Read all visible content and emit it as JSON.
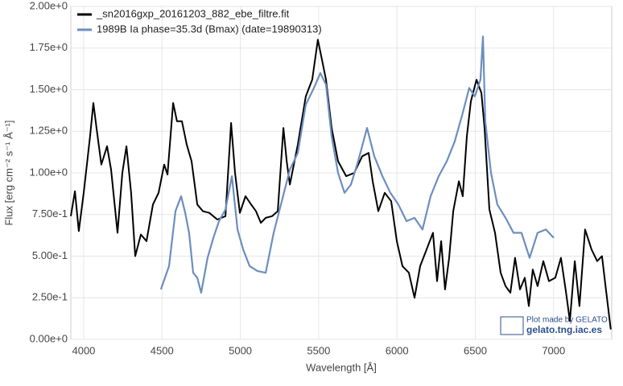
{
  "chart_data": {
    "type": "line",
    "xlabel": "Wavelength [Å]",
    "ylabel": "Flux [erg cm⁻² s⁻¹ Å⁻¹]",
    "xlim": [
      3918,
      7371
    ],
    "ylim": [
      0,
      2
    ],
    "xticks": [
      4000,
      4500,
      5000,
      5500,
      6000,
      6500,
      7000
    ],
    "yticks": [
      {
        "value": 0,
        "label": "0.00e+0"
      },
      {
        "value": 0.25,
        "label": "2.50e-1"
      },
      {
        "value": 0.5,
        "label": "5.00e-1"
      },
      {
        "value": 0.75,
        "label": "7.50e-1"
      },
      {
        "value": 1,
        "label": "1.00e+0"
      },
      {
        "value": 1.25,
        "label": "1.25e+0"
      },
      {
        "value": 1.5,
        "label": "1.50e+0"
      },
      {
        "value": 1.75,
        "label": "1.75e+0"
      },
      {
        "value": 2,
        "label": "2.00e+0"
      }
    ],
    "grid": true,
    "legend": "upper left",
    "annotations": [
      "Plot made by GELATO",
      "gelato.tng.iac.es"
    ],
    "series": [
      {
        "name": "_sn2016gxp_20161203_882_ebe_filtre.fit",
        "color": "#000000",
        "x": [
          3918,
          3944,
          3969,
          4000,
          4041,
          4062,
          4082,
          4113,
          4149,
          4175,
          4216,
          4247,
          4273,
          4303,
          4329,
          4365,
          4401,
          4442,
          4478,
          4514,
          4535,
          4571,
          4596,
          4627,
          4658,
          4689,
          4725,
          4761,
          4802,
          4853,
          4905,
          4941,
          4966,
          4997,
          5033,
          5069,
          5100,
          5131,
          5162,
          5203,
          5239,
          5275,
          5296,
          5316,
          5367,
          5418,
          5459,
          5495,
          5521,
          5547,
          5583,
          5624,
          5676,
          5727,
          5778,
          5819,
          5845,
          5881,
          5922,
          5963,
          5999,
          6035,
          6076,
          6112,
          6148,
          6189,
          6230,
          6256,
          6282,
          6307,
          6333,
          6359,
          6395,
          6420,
          6446,
          6472,
          6508,
          6539,
          6559,
          6590,
          6626,
          6662,
          6693,
          6724,
          6754,
          6785,
          6816,
          6842,
          6867,
          6898,
          6934,
          6970,
          7011,
          7047,
          7078,
          7104,
          7135,
          7165,
          7201,
          7242,
          7278,
          7309,
          7334,
          7365
        ],
        "values": [
          0.74,
          0.89,
          0.65,
          0.88,
          1.22,
          1.42,
          1.27,
          1.05,
          1.16,
          1.02,
          0.64,
          1.0,
          1.16,
          0.88,
          0.5,
          0.63,
          0.59,
          0.81,
          0.88,
          1.05,
          0.99,
          1.42,
          1.31,
          1.31,
          1.17,
          1.07,
          0.81,
          0.77,
          0.76,
          0.72,
          0.74,
          1.3,
          1.0,
          0.76,
          0.86,
          0.81,
          0.77,
          0.7,
          0.73,
          0.74,
          0.77,
          1.27,
          1.07,
          0.93,
          1.17,
          1.46,
          1.56,
          1.8,
          1.68,
          1.56,
          1.27,
          1.07,
          0.98,
          1.0,
          1.1,
          1.12,
          0.95,
          0.77,
          0.88,
          0.83,
          0.59,
          0.44,
          0.4,
          0.25,
          0.44,
          0.54,
          0.64,
          0.35,
          0.59,
          0.3,
          0.49,
          0.77,
          0.95,
          0.86,
          1.22,
          1.43,
          1.56,
          1.48,
          1.27,
          0.78,
          0.64,
          0.4,
          0.32,
          0.28,
          0.49,
          0.3,
          0.37,
          0.2,
          0.42,
          0.32,
          0.47,
          0.35,
          0.37,
          0.49,
          0.29,
          0.11,
          0.47,
          0.2,
          0.66,
          0.54,
          0.47,
          0.5,
          0.3,
          0.06
        ]
      },
      {
        "name": "1989B  Ia  phase=35.3d (Bmax)  (date=19890313)",
        "color": "#6c8ebf",
        "x": [
          4493,
          4545,
          4586,
          4622,
          4648,
          4673,
          4699,
          4725,
          4750,
          4791,
          4828,
          4864,
          4905,
          4946,
          4982,
          5018,
          5059,
          5110,
          5162,
          5213,
          5265,
          5316,
          5367,
          5418,
          5470,
          5511,
          5547,
          5583,
          5624,
          5665,
          5706,
          5752,
          5809,
          5855,
          5907,
          5958,
          6009,
          6061,
          6112,
          6163,
          6215,
          6266,
          6318,
          6369,
          6420,
          6461,
          6497,
          6533,
          6549,
          6564,
          6600,
          6641,
          6693,
          6744,
          6795,
          6847,
          6898,
          6950,
          7001
        ],
        "values": [
          0.3,
          0.44,
          0.77,
          0.86,
          0.76,
          0.64,
          0.4,
          0.37,
          0.28,
          0.49,
          0.61,
          0.71,
          0.78,
          0.98,
          0.66,
          0.54,
          0.44,
          0.41,
          0.4,
          0.64,
          0.83,
          1.02,
          1.12,
          1.41,
          1.51,
          1.6,
          1.53,
          1.22,
          1.0,
          0.88,
          0.93,
          1.07,
          1.27,
          1.1,
          0.98,
          0.88,
          0.81,
          0.71,
          0.73,
          0.66,
          0.86,
          0.98,
          1.07,
          1.19,
          1.36,
          1.51,
          1.46,
          1.56,
          1.82,
          1.31,
          1.0,
          0.81,
          0.73,
          0.64,
          0.64,
          0.49,
          0.64,
          0.66,
          0.61
        ]
      }
    ]
  }
}
